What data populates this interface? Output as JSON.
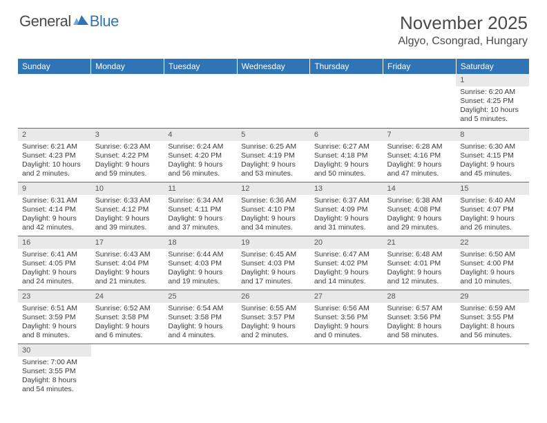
{
  "logo": {
    "part1": "General",
    "part2": "Blue"
  },
  "title": "November 2025",
  "location": "Algyo, Csongrad, Hungary",
  "colors": {
    "header_bg": "#2f74b5",
    "header_fg": "#ffffff",
    "daynum_bg": "#e9e9e9",
    "row_divider": "#2f74b5",
    "text": "#3a3a3a",
    "logo_gray": "#4a4a4a",
    "logo_blue": "#2f74b5"
  },
  "typography": {
    "title_fontsize": 26,
    "location_fontsize": 16,
    "dayhdr_fontsize": 12,
    "body_fontsize": 10.5
  },
  "day_headers": [
    "Sunday",
    "Monday",
    "Tuesday",
    "Wednesday",
    "Thursday",
    "Friday",
    "Saturday"
  ],
  "weeks": [
    [
      null,
      null,
      null,
      null,
      null,
      null,
      {
        "n": "1",
        "sunrise": "6:20 AM",
        "sunset": "4:25 PM",
        "daylight": "10 hours and 5 minutes."
      }
    ],
    [
      {
        "n": "2",
        "sunrise": "6:21 AM",
        "sunset": "4:23 PM",
        "daylight": "10 hours and 2 minutes."
      },
      {
        "n": "3",
        "sunrise": "6:23 AM",
        "sunset": "4:22 PM",
        "daylight": "9 hours and 59 minutes."
      },
      {
        "n": "4",
        "sunrise": "6:24 AM",
        "sunset": "4:20 PM",
        "daylight": "9 hours and 56 minutes."
      },
      {
        "n": "5",
        "sunrise": "6:25 AM",
        "sunset": "4:19 PM",
        "daylight": "9 hours and 53 minutes."
      },
      {
        "n": "6",
        "sunrise": "6:27 AM",
        "sunset": "4:18 PM",
        "daylight": "9 hours and 50 minutes."
      },
      {
        "n": "7",
        "sunrise": "6:28 AM",
        "sunset": "4:16 PM",
        "daylight": "9 hours and 47 minutes."
      },
      {
        "n": "8",
        "sunrise": "6:30 AM",
        "sunset": "4:15 PM",
        "daylight": "9 hours and 45 minutes."
      }
    ],
    [
      {
        "n": "9",
        "sunrise": "6:31 AM",
        "sunset": "4:14 PM",
        "daylight": "9 hours and 42 minutes."
      },
      {
        "n": "10",
        "sunrise": "6:33 AM",
        "sunset": "4:12 PM",
        "daylight": "9 hours and 39 minutes."
      },
      {
        "n": "11",
        "sunrise": "6:34 AM",
        "sunset": "4:11 PM",
        "daylight": "9 hours and 37 minutes."
      },
      {
        "n": "12",
        "sunrise": "6:36 AM",
        "sunset": "4:10 PM",
        "daylight": "9 hours and 34 minutes."
      },
      {
        "n": "13",
        "sunrise": "6:37 AM",
        "sunset": "4:09 PM",
        "daylight": "9 hours and 31 minutes."
      },
      {
        "n": "14",
        "sunrise": "6:38 AM",
        "sunset": "4:08 PM",
        "daylight": "9 hours and 29 minutes."
      },
      {
        "n": "15",
        "sunrise": "6:40 AM",
        "sunset": "4:07 PM",
        "daylight": "9 hours and 26 minutes."
      }
    ],
    [
      {
        "n": "16",
        "sunrise": "6:41 AM",
        "sunset": "4:05 PM",
        "daylight": "9 hours and 24 minutes."
      },
      {
        "n": "17",
        "sunrise": "6:43 AM",
        "sunset": "4:04 PM",
        "daylight": "9 hours and 21 minutes."
      },
      {
        "n": "18",
        "sunrise": "6:44 AM",
        "sunset": "4:03 PM",
        "daylight": "9 hours and 19 minutes."
      },
      {
        "n": "19",
        "sunrise": "6:45 AM",
        "sunset": "4:03 PM",
        "daylight": "9 hours and 17 minutes."
      },
      {
        "n": "20",
        "sunrise": "6:47 AM",
        "sunset": "4:02 PM",
        "daylight": "9 hours and 14 minutes."
      },
      {
        "n": "21",
        "sunrise": "6:48 AM",
        "sunset": "4:01 PM",
        "daylight": "9 hours and 12 minutes."
      },
      {
        "n": "22",
        "sunrise": "6:50 AM",
        "sunset": "4:00 PM",
        "daylight": "9 hours and 10 minutes."
      }
    ],
    [
      {
        "n": "23",
        "sunrise": "6:51 AM",
        "sunset": "3:59 PM",
        "daylight": "9 hours and 8 minutes."
      },
      {
        "n": "24",
        "sunrise": "6:52 AM",
        "sunset": "3:58 PM",
        "daylight": "9 hours and 6 minutes."
      },
      {
        "n": "25",
        "sunrise": "6:54 AM",
        "sunset": "3:58 PM",
        "daylight": "9 hours and 4 minutes."
      },
      {
        "n": "26",
        "sunrise": "6:55 AM",
        "sunset": "3:57 PM",
        "daylight": "9 hours and 2 minutes."
      },
      {
        "n": "27",
        "sunrise": "6:56 AM",
        "sunset": "3:56 PM",
        "daylight": "9 hours and 0 minutes."
      },
      {
        "n": "28",
        "sunrise": "6:57 AM",
        "sunset": "3:56 PM",
        "daylight": "8 hours and 58 minutes."
      },
      {
        "n": "29",
        "sunrise": "6:59 AM",
        "sunset": "3:55 PM",
        "daylight": "8 hours and 56 minutes."
      }
    ],
    [
      {
        "n": "30",
        "sunrise": "7:00 AM",
        "sunset": "3:55 PM",
        "daylight": "8 hours and 54 minutes."
      },
      null,
      null,
      null,
      null,
      null,
      null
    ]
  ],
  "labels": {
    "sunrise": "Sunrise:",
    "sunset": "Sunset:",
    "daylight": "Daylight:"
  }
}
